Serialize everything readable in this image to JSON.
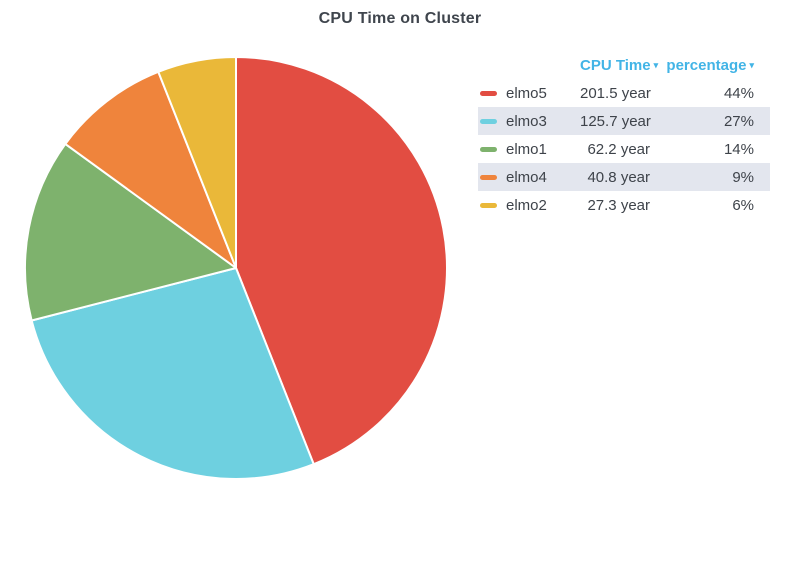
{
  "title": "CPU Time on Cluster",
  "legend": {
    "headers": [
      {
        "label": "CPU Time",
        "sort_icon": "▾",
        "sort_direction": "desc"
      },
      {
        "label": "percentage",
        "sort_icon": "▾",
        "sort_direction": "desc"
      }
    ]
  },
  "style": {
    "header_link_color": "#42b4e6",
    "row_stripe_color": "#e3e6ee",
    "text_color": "#3e434a",
    "slice_border_color": "#ffffff"
  },
  "chart_data": {
    "type": "pie",
    "title": "CPU Time on Cluster",
    "value_column": "CPU Time",
    "percent_column": "percentage",
    "unit": "year",
    "start_angle_deg": 0,
    "direction": "clockwise",
    "legend_position": "right",
    "slices": [
      {
        "label": "elmo5",
        "value": 201.5,
        "display": "201.5 year",
        "percentage": 44,
        "percent_display": "44%",
        "color": "#E24D42"
      },
      {
        "label": "elmo3",
        "value": 125.7,
        "display": "125.7 year",
        "percentage": 27,
        "percent_display": "27%",
        "color": "#6ED0E0"
      },
      {
        "label": "elmo1",
        "value": 62.2,
        "display": "62.2 year",
        "percentage": 14,
        "percent_display": "14%",
        "color": "#7EB26D"
      },
      {
        "label": "elmo4",
        "value": 40.8,
        "display": "40.8 year",
        "percentage": 9,
        "percent_display": "9%",
        "color": "#EF843C"
      },
      {
        "label": "elmo2",
        "value": 27.3,
        "display": "27.3 year",
        "percentage": 6,
        "percent_display": "6%",
        "color": "#EAB839"
      }
    ]
  }
}
